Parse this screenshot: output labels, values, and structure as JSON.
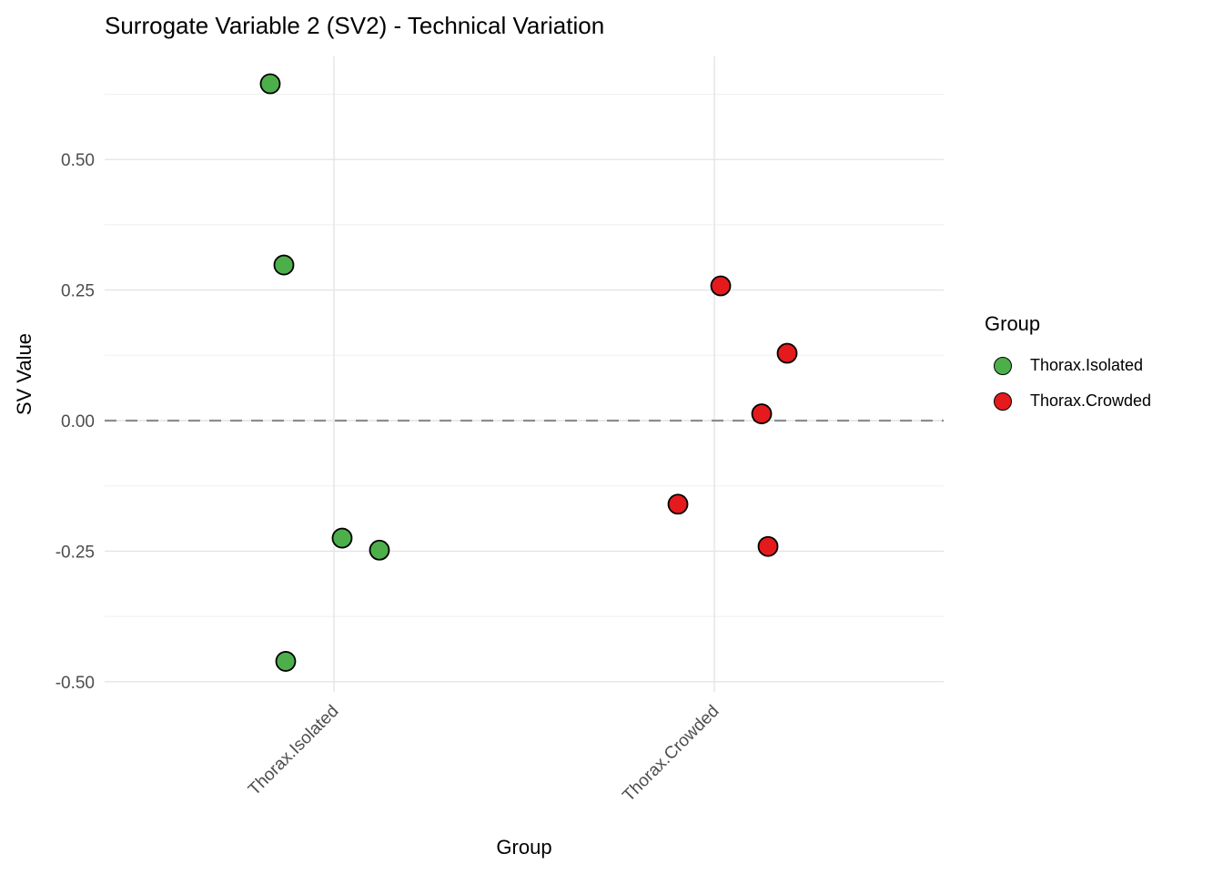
{
  "title": "Surrogate Variable 2 (SV2) - Technical Variation",
  "colors": {
    "background": "#FFFFFF",
    "grid_major": "#E4E4E4",
    "grid_minor": "#EFEFEF",
    "zero_line": "#8C8C8C",
    "tick_label": "#4D4D4D",
    "text": "#000000",
    "point_stroke": "#000000",
    "green": "#4DAF4A",
    "red": "#E41A1C"
  },
  "chart_data": {
    "type": "scatter",
    "title": "Surrogate Variable 2 (SV2) - Technical Variation",
    "xlabel": "Group",
    "ylabel": "SV Value",
    "ylim": [
      -0.52,
      0.7
    ],
    "grid": "on",
    "legend_position": "right",
    "y_major_ticks": [
      0.5,
      0.25,
      0.0,
      -0.25,
      -0.5
    ],
    "y_tick_labels": [
      "0.50",
      "0.25",
      "0.00",
      "-0.25",
      "-0.50"
    ],
    "y_minor_ticks": [
      0.625,
      0.375,
      0.125,
      -0.125,
      -0.375
    ],
    "categories": [
      "Thorax.Isolated",
      "Thorax.Crowded"
    ],
    "zero_line": {
      "y": 0.0,
      "style": "dashed"
    },
    "series": [
      {
        "name": "Thorax.Isolated",
        "color": "#4DAF4A",
        "category_index": 0,
        "points": [
          {
            "y": 0.645,
            "dx": -70
          },
          {
            "y": 0.298,
            "dx": -55
          },
          {
            "y": -0.225,
            "dx": 9
          },
          {
            "y": -0.248,
            "dx": 50
          },
          {
            "y": -0.461,
            "dx": -53
          }
        ]
      },
      {
        "name": "Thorax.Crowded",
        "color": "#E41A1C",
        "category_index": 1,
        "points": [
          {
            "y": 0.258,
            "dx": 7
          },
          {
            "y": 0.129,
            "dx": 80
          },
          {
            "y": 0.013,
            "dx": 52
          },
          {
            "y": -0.16,
            "dx": -40
          },
          {
            "y": -0.241,
            "dx": 59
          }
        ]
      }
    ],
    "legend": {
      "title": "Group",
      "entries": [
        {
          "label": "Thorax.Isolated",
          "color": "#4DAF4A"
        },
        {
          "label": "Thorax.Crowded",
          "color": "#E41A1C"
        }
      ]
    }
  }
}
